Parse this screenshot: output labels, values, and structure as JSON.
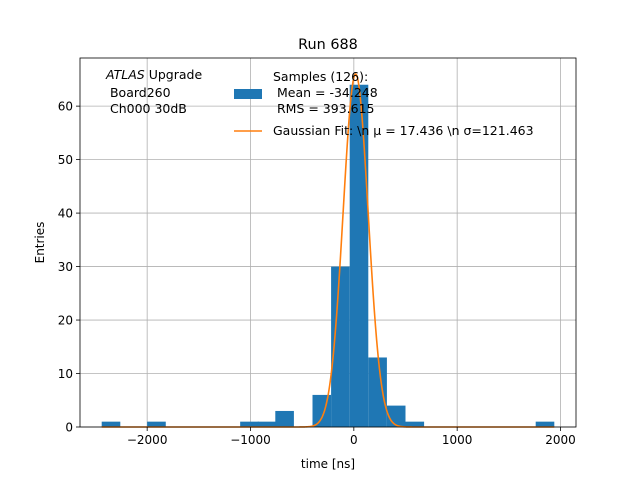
{
  "chart_data": {
    "type": "bar",
    "title": "Run 688",
    "xlabel": "time [ns]",
    "ylabel": "Entries",
    "xlim": [
      -2650,
      2150
    ],
    "ylim": [
      0,
      69
    ],
    "xticks": [
      -2000,
      -1000,
      0,
      1000,
      2000
    ],
    "xtick_labels": [
      "−2000",
      "−1000",
      "0",
      "1000",
      "2000"
    ],
    "yticks": [
      0,
      10,
      20,
      30,
      40,
      50,
      60
    ],
    "ytick_labels": [
      "0",
      "10",
      "20",
      "30",
      "40",
      "50",
      "60"
    ],
    "grid": true,
    "legend_placement": "top-right",
    "annotation": {
      "line1_italic": "ATLAS",
      "line1_rest": " Upgrade",
      "line2": " Board260",
      "line3": " Ch000 30dB"
    },
    "series": [
      {
        "name": "Samples (126):\n Mean = -34.248\n RMS = 393.615",
        "type": "histogram",
        "color": "#1f77b4",
        "bin_width": 180,
        "bins": [
          {
            "x0": -2440,
            "count": 1
          },
          {
            "x0": -2000,
            "count": 1
          },
          {
            "x0": -1100,
            "count": 1
          },
          {
            "x0": -930,
            "count": 1
          },
          {
            "x0": -760,
            "count": 3
          },
          {
            "x0": -400,
            "count": 6
          },
          {
            "x0": -220,
            "count": 30
          },
          {
            "x0": -40,
            "count": 64
          },
          {
            "x0": 140,
            "count": 13
          },
          {
            "x0": 320,
            "count": 4
          },
          {
            "x0": 500,
            "count": 1
          },
          {
            "x0": 1760,
            "count": 1
          }
        ]
      },
      {
        "name": "Gaussian Fit: \\n μ = 17.436 \\n σ=121.463",
        "type": "line",
        "color": "#ff7f0e",
        "mu": 17.436,
        "sigma": 121.463,
        "amplitude": 66,
        "x_range": [
          -2440,
          1940
        ]
      }
    ]
  }
}
